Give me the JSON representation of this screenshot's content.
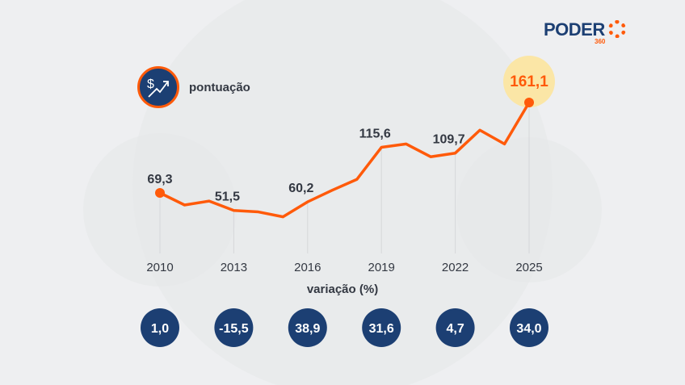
{
  "brand": {
    "name": "PODER",
    "sub": "360",
    "color": "#1c3f73",
    "accent": "#ff5a0a"
  },
  "legend": {
    "label": "pontuação",
    "icon": "dollar-trend-up-icon"
  },
  "colors": {
    "line": "#ff5a0a",
    "highlight": "#fbe6a6",
    "badge": "#1c3f73",
    "text": "#333842",
    "background": "#eeeff1"
  },
  "chart_data": {
    "type": "line",
    "title": "",
    "xlabel": "",
    "ylabel": "",
    "x": [
      2010,
      2011,
      2012,
      2013,
      2014,
      2015,
      2016,
      2017,
      2018,
      2019,
      2020,
      2021,
      2022,
      2023,
      2024,
      2025
    ],
    "values": [
      69.3,
      57,
      61,
      51.5,
      50,
      45,
      60.2,
      72,
      83,
      115.6,
      119,
      106,
      109.7,
      133,
      119,
      161.1
    ],
    "tick_labels": [
      "2010",
      "2013",
      "2016",
      "2019",
      "2022",
      "2025"
    ],
    "data_labels": [
      {
        "x": 2010,
        "text": "69,3"
      },
      {
        "x": 2013,
        "text": "51,5"
      },
      {
        "x": 2016,
        "text": "60,2"
      },
      {
        "x": 2019,
        "text": "115,6"
      },
      {
        "x": 2022,
        "text": "109,7"
      },
      {
        "x": 2025,
        "text": "161,1"
      }
    ],
    "grid": false,
    "variation": {
      "label": "variação (%)",
      "values": [
        "1,0",
        "-15,5",
        "38,9",
        "31,6",
        "4,7",
        "34,0"
      ]
    }
  }
}
